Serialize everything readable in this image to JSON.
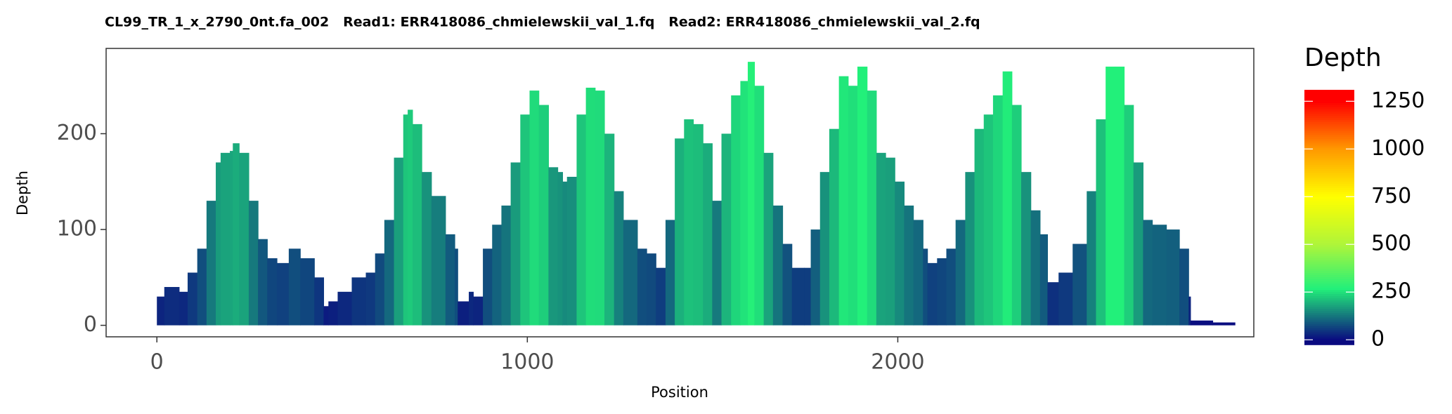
{
  "chart_data": {
    "type": "coverage",
    "title": "CL99_TR_1_x_2790_0nt.fa_002   Read1: ERR418086_chmielewskii_val_1.fq   Read2: ERR418086_chmielewskii_val_2.fq",
    "x_label": "Position",
    "y_label": "Depth",
    "x": [
      0,
      20,
      60,
      83,
      109,
      134,
      159,
      172,
      197,
      205,
      222,
      248,
      273,
      298,
      324,
      356,
      387,
      425,
      450,
      463,
      488,
      526,
      564,
      589,
      614,
      640,
      665,
      677,
      690,
      715,
      741,
      779,
      804,
      812,
      842,
      854,
      880,
      905,
      930,
      955,
      981,
      1006,
      1031,
      1057,
      1082,
      1095,
      1107,
      1133,
      1158,
      1183,
      1208,
      1234,
      1259,
      1297,
      1322,
      1347,
      1373,
      1398,
      1423,
      1448,
      1474,
      1499,
      1524,
      1550,
      1575,
      1595,
      1613,
      1638,
      1663,
      1689,
      1714,
      1747,
      1765,
      1790,
      1815,
      1841,
      1866,
      1891,
      1917,
      1942,
      1967,
      1992,
      2017,
      2042,
      2068,
      2080,
      2106,
      2131,
      2156,
      2182,
      2207,
      2232,
      2257,
      2283,
      2308,
      2333,
      2359,
      2384,
      2404,
      2434,
      2472,
      2510,
      2535,
      2561,
      2586,
      2611,
      2636,
      2662,
      2687,
      2725,
      2760,
      2785,
      2790,
      2850
    ],
    "values": [
      30,
      40,
      35,
      55,
      80,
      130,
      170,
      180,
      182,
      190,
      180,
      130,
      90,
      70,
      65,
      80,
      70,
      50,
      20,
      25,
      35,
      50,
      55,
      75,
      110,
      175,
      220,
      225,
      210,
      160,
      135,
      95,
      80,
      25,
      35,
      30,
      80,
      105,
      125,
      170,
      220,
      245,
      230,
      165,
      160,
      150,
      155,
      220,
      248,
      245,
      200,
      140,
      110,
      80,
      75,
      60,
      110,
      195,
      215,
      210,
      190,
      130,
      200,
      240,
      255,
      275,
      250,
      180,
      125,
      85,
      60,
      60,
      100,
      160,
      205,
      260,
      250,
      270,
      245,
      180,
      175,
      150,
      125,
      110,
      80,
      65,
      70,
      80,
      110,
      160,
      205,
      220,
      240,
      265,
      230,
      160,
      120,
      95,
      45,
      55,
      85,
      140,
      215,
      270,
      270,
      230,
      170,
      110,
      105,
      100,
      80,
      30,
      5,
      3
    ],
    "xlim": [
      -137,
      2961
    ],
    "xticks": [
      0,
      1000,
      2000
    ],
    "ylim": [
      -12,
      289
    ],
    "yticks": [
      0,
      100,
      200
    ],
    "legend": {
      "title": "Depth",
      "lim": [
        -25,
        1310
      ],
      "ticks": [
        0,
        250,
        500,
        750,
        1000,
        1250
      ]
    },
    "colorscale": [
      {
        "value": 0,
        "color": "#0a0a80"
      },
      {
        "value": 270,
        "color": "#22f07a"
      },
      {
        "value": 500,
        "color": "#aef53a"
      },
      {
        "value": 750,
        "color": "#ffff00"
      },
      {
        "value": 1000,
        "color": "#ff9900"
      },
      {
        "value": 1250,
        "color": "#ff0000"
      }
    ]
  }
}
